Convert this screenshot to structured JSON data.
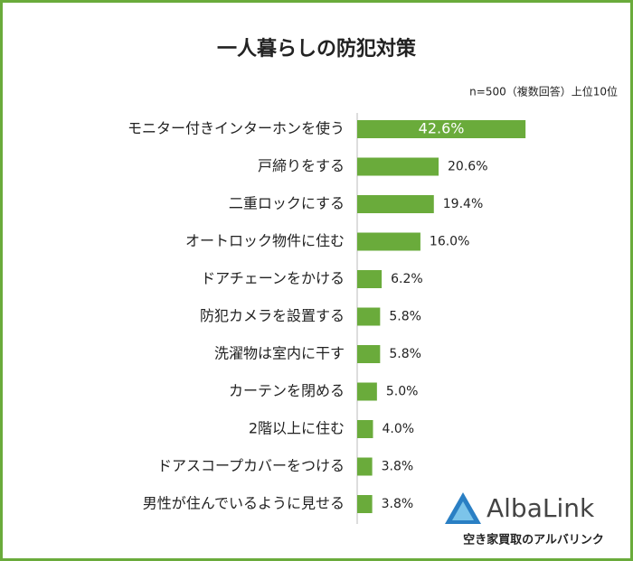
{
  "chart_data": {
    "type": "bar",
    "orientation": "horizontal",
    "title": "一人暮らしの防犯対策",
    "subtitle": "n=500（複数回答）上位10位",
    "categories": [
      "モニター付きインターホンを使う",
      "戸締りをする",
      "二重ロックにする",
      "オートロック物件に住む",
      "ドアチェーンをかける",
      "防犯カメラを設置する",
      "洗濯物は室内に干す",
      "カーテンを閉める",
      "2階以上に住む",
      "ドアスコープカバーをつける",
      "男性が住んでいるように見せる"
    ],
    "values": [
      42.6,
      20.6,
      19.4,
      16.0,
      6.2,
      5.8,
      5.8,
      5.0,
      4.0,
      3.8,
      3.8
    ],
    "value_labels": [
      "42.6%",
      "20.6%",
      "19.4%",
      "16.0%",
      "6.2%",
      "5.8%",
      "5.8%",
      "5.0%",
      "4.0%",
      "3.8%",
      "3.8%"
    ],
    "color": "#6aab3b"
  },
  "logo": {
    "name": "AlbaLink",
    "tagline": "空き家買取のアルバリンク"
  }
}
